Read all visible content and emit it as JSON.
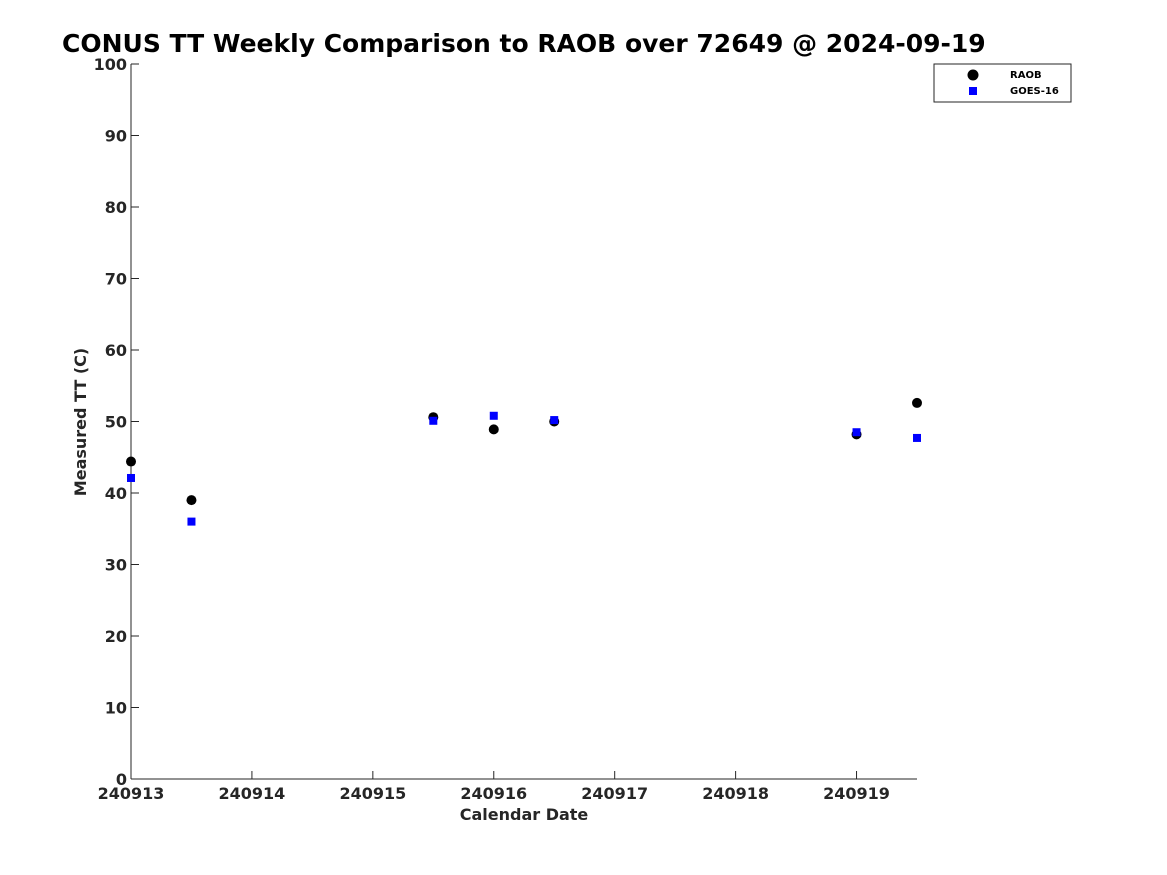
{
  "chart_data": {
    "type": "scatter",
    "title": "CONUS TT Weekly Comparison to RAOB over 72649 @ 2024-09-19",
    "xlabel": "Calendar Date",
    "ylabel": "Measured TT (C)",
    "xlim": [
      0,
      6.5
    ],
    "ylim": [
      0,
      100
    ],
    "xticks": [
      {
        "x": 0,
        "label": "240913"
      },
      {
        "x": 1,
        "label": "240914"
      },
      {
        "x": 2,
        "label": "240915"
      },
      {
        "x": 3,
        "label": "240916"
      },
      {
        "x": 4,
        "label": "240917"
      },
      {
        "x": 5,
        "label": "240918"
      },
      {
        "x": 6,
        "label": "240919"
      }
    ],
    "yticks": [
      "0",
      "10",
      "20",
      "30",
      "40",
      "50",
      "60",
      "70",
      "80",
      "90",
      "100"
    ],
    "grid": false,
    "legend_position": "top-right",
    "series": [
      {
        "name": "RAOB",
        "marker": "circle",
        "color": "#000000",
        "points": [
          {
            "x": 0.0,
            "y": 44.4
          },
          {
            "x": 0.5,
            "y": 39.0
          },
          {
            "x": 2.5,
            "y": 50.6
          },
          {
            "x": 3.0,
            "y": 48.9
          },
          {
            "x": 3.5,
            "y": 50.0
          },
          {
            "x": 6.0,
            "y": 48.2
          },
          {
            "x": 6.5,
            "y": 52.6
          }
        ]
      },
      {
        "name": "GOES-16",
        "marker": "square",
        "color": "#0000ff",
        "points": [
          {
            "x": 0.0,
            "y": 42.1
          },
          {
            "x": 0.5,
            "y": 36.0
          },
          {
            "x": 2.5,
            "y": 50.1
          },
          {
            "x": 3.0,
            "y": 50.8
          },
          {
            "x": 3.5,
            "y": 50.2
          },
          {
            "x": 6.0,
            "y": 48.5
          },
          {
            "x": 6.5,
            "y": 47.7
          }
        ]
      }
    ]
  }
}
